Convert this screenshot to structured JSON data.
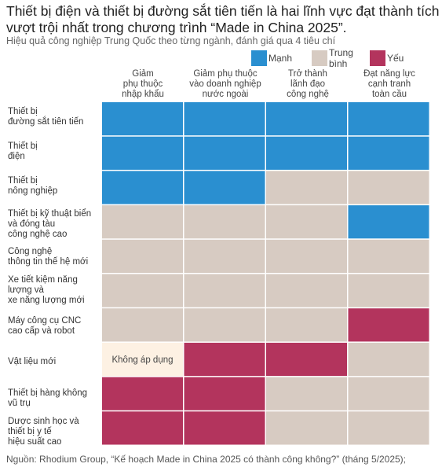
{
  "title": "Thiết bị điện và thiết bị đường sắt tiên tiến là hai lĩnh vực đạt thành tích vượt trội nhất trong chương trình “Made in China 2025”.",
  "subtitle": "Hiệu quả công nghiệp Trung Quốc theo từng ngành, đánh giá qua 4 tiêu chí",
  "source": "Nguồn: Rhodium Group, “Kế hoạch Made in China 2025 có thành công không?” (tháng 5/2025);",
  "colors": {
    "strong": "#2a8fd0",
    "average": "#d7cbc2",
    "weak": "#b3345d",
    "na": "#fdf1e3"
  },
  "legend": [
    {
      "key": "strong",
      "label": "Mạnh"
    },
    {
      "key": "average",
      "label": "Trung bình"
    },
    {
      "key": "weak",
      "label": "Yếu"
    }
  ],
  "chart_data": {
    "type": "heatmap",
    "columns": [
      "Giảm\nphụ thuộc\nnhập khẩu",
      "Giảm phụ thuộc\nvào doanh nghiệp\nnước ngoài",
      "Trở thành\nlãnh đạo\ncông nghệ",
      "Đạt năng lực\ncạnh tranh\ntoàn cầu"
    ],
    "rows": [
      {
        "label": "Thiết bị\nđường sắt tiên tiến",
        "values": [
          "strong",
          "strong",
          "strong",
          "strong"
        ]
      },
      {
        "label": "Thiết bị\nđiện",
        "values": [
          "strong",
          "strong",
          "strong",
          "strong"
        ]
      },
      {
        "label": "Thiết bị\nnông nghiệp",
        "values": [
          "strong",
          "strong",
          "average",
          "average"
        ]
      },
      {
        "label": "Thiết bị kỹ thuật biển\nvà đóng tàu\ncông nghệ cao",
        "values": [
          "average",
          "average",
          "average",
          "strong"
        ]
      },
      {
        "label": "Công nghệ\nthông tin thế hệ mới",
        "values": [
          "average",
          "average",
          "average",
          "average"
        ]
      },
      {
        "label": "Xe tiết kiệm năng\nlượng và\nxe năng lượng mới",
        "values": [
          "average",
          "average",
          "average",
          "average"
        ]
      },
      {
        "label": "Máy công cụ CNC\ncao cấp và robot",
        "values": [
          "average",
          "average",
          "average",
          "weak"
        ]
      },
      {
        "label": "Vật liệu mới",
        "values": [
          "na",
          "weak",
          "weak",
          "average"
        ],
        "na_label": "Không áp dụng"
      },
      {
        "label": "Thiết bị hàng không\nvũ trụ",
        "values": [
          "weak",
          "weak",
          "average",
          "average"
        ]
      },
      {
        "label": "Dược sinh học và\nthiết bị y tế\nhiệu suất cao",
        "values": [
          "weak",
          "weak",
          "average",
          "average"
        ]
      }
    ]
  }
}
